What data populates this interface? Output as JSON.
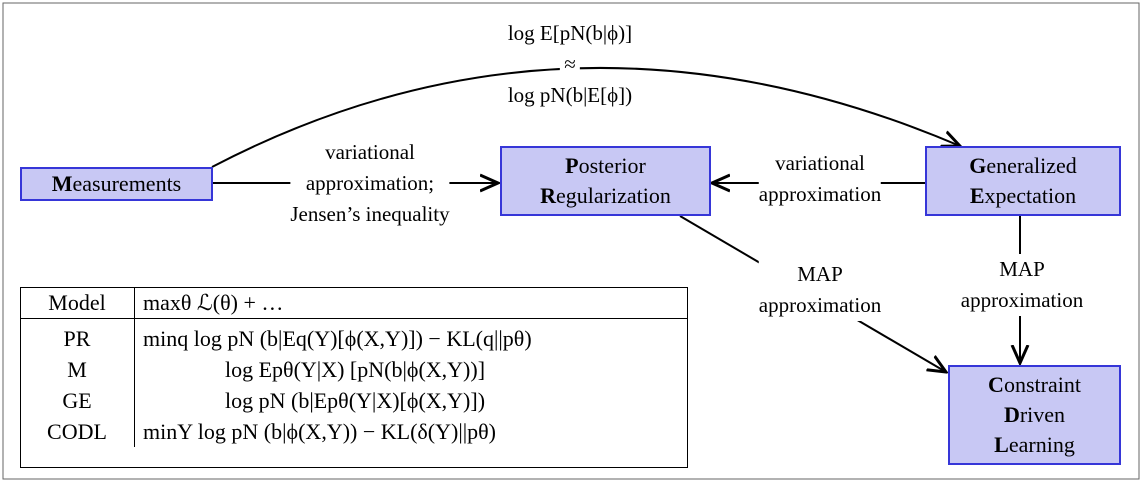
{
  "nodes": [
    {
      "lines": [
        "Measurements"
      ]
    },
    {
      "lines": [
        "Posterior",
        "Regularization"
      ]
    },
    {
      "lines": [
        "Generalized",
        "Expectation"
      ]
    },
    {
      "lines": [
        "Constraint",
        "Driven",
        "Learning"
      ]
    }
  ],
  "edge_labels": [
    {
      "lines": [
        "log E[pN(b|ϕ)]",
        "≈",
        "log pN(b|E[ϕ])"
      ]
    },
    {
      "lines": [
        "variational",
        "approximation;",
        "Jensen’s inequality"
      ]
    },
    {
      "lines": [
        "variational",
        "approximation"
      ]
    },
    {
      "lines": [
        "MAP",
        "approximation"
      ]
    },
    {
      "lines": [
        "MAP",
        "approximation"
      ]
    }
  ],
  "table": {
    "header": [
      "Model",
      "maxθ    ℒ(θ) + …"
    ],
    "rows": [
      [
        "PR",
        "minq  log pN (b|Eq(Y)[ϕ(X,Y)]) − KL(q||pθ)"
      ],
      [
        "M",
        "log Epθ(Y|X) [pN(b|ϕ(X,Y))]"
      ],
      [
        "GE",
        "log pN (b|Epθ(Y|X)[ϕ(X,Y)])"
      ],
      [
        "CODL",
        "minY  log pN (b|ϕ(X,Y)) − KL(δ(Y)||pθ)"
      ]
    ]
  }
}
